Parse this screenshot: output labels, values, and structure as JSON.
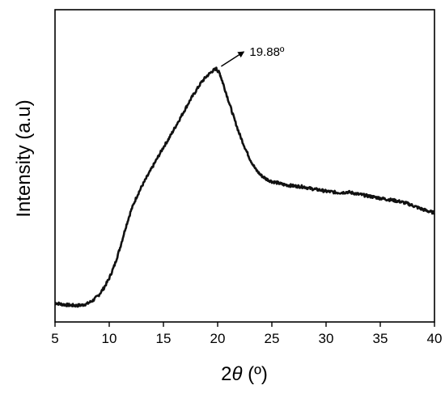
{
  "chart_data": {
    "type": "line",
    "title": "",
    "xlabel": "2θ (º)",
    "xlabel_parts": {
      "prefix": "2",
      "symbol": "θ",
      "unit": " (º)"
    },
    "ylabel": "Intensity (a.u)",
    "xlim": [
      5,
      40
    ],
    "ylim": [
      0,
      1
    ],
    "y_ticks_shown": false,
    "grid": false,
    "legend": "none",
    "xticks": [
      5,
      10,
      15,
      20,
      25,
      30,
      35,
      40
    ],
    "xtick_labels": [
      "5",
      "10",
      "15",
      "20",
      "25",
      "30",
      "35",
      "40"
    ],
    "line_color": "#111111",
    "series": [
      {
        "x": [
          5.0,
          5.5,
          6.0,
          6.5,
          7.0,
          7.5,
          8.0,
          8.5,
          9.0,
          9.5,
          10.0,
          10.5,
          11.0,
          11.5,
          12.0,
          12.5,
          13.0,
          13.5,
          14.0,
          14.5,
          15.0,
          15.5,
          16.0,
          16.5,
          17.0,
          17.5,
          18.0,
          18.5,
          19.0,
          19.5,
          19.88,
          20.2,
          20.5,
          21.0,
          21.5,
          22.0,
          22.5,
          23.0,
          23.5,
          24.0,
          24.5,
          25.0,
          25.5,
          26.0,
          26.5,
          27.0,
          27.5,
          28.0,
          28.5,
          29.0,
          29.5,
          30.0,
          30.5,
          31.0,
          31.5,
          32.0,
          32.5,
          33.0,
          33.5,
          34.0,
          34.5,
          35.0,
          35.5,
          36.0,
          36.5,
          37.0,
          37.5,
          38.0,
          38.5,
          39.0,
          39.5,
          40.0
        ],
        "y": [
          0.045,
          0.04,
          0.037,
          0.035,
          0.034,
          0.036,
          0.042,
          0.055,
          0.075,
          0.105,
          0.145,
          0.2,
          0.27,
          0.35,
          0.42,
          0.475,
          0.52,
          0.56,
          0.6,
          0.64,
          0.68,
          0.715,
          0.755,
          0.795,
          0.835,
          0.875,
          0.91,
          0.945,
          0.97,
          0.99,
          1.0,
          0.98,
          0.94,
          0.87,
          0.8,
          0.735,
          0.68,
          0.63,
          0.59,
          0.565,
          0.55,
          0.54,
          0.535,
          0.528,
          0.525,
          0.522,
          0.52,
          0.518,
          0.512,
          0.508,
          0.505,
          0.5,
          0.498,
          0.495,
          0.495,
          0.497,
          0.493,
          0.488,
          0.484,
          0.48,
          0.476,
          0.472,
          0.468,
          0.465,
          0.461,
          0.456,
          0.45,
          0.442,
          0.433,
          0.425,
          0.418,
          0.412
        ]
      }
    ],
    "annotations": [
      {
        "text": "19.88º",
        "x": 19.88,
        "y": 1.0,
        "arrow": true
      }
    ]
  }
}
